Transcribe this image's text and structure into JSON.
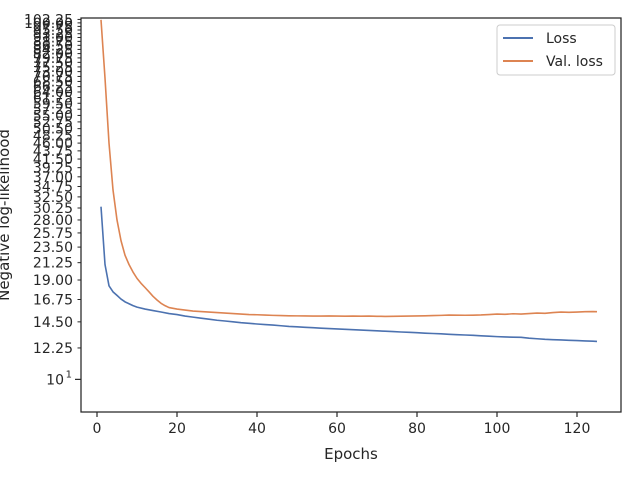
{
  "chart_data": {
    "type": "line",
    "xlabel": "Epochs",
    "ylabel": "Negative log-likelihood",
    "xlim": [
      -4,
      131
    ],
    "ylim": [
      8.1,
      103.2
    ],
    "yscale": "log",
    "x_ticks": [
      "0",
      "20",
      "40",
      "60",
      "80",
      "100",
      "120"
    ],
    "y_ticks": [
      "12.25",
      "14.50",
      "16.75",
      "19.00",
      "21.25",
      "23.50",
      "25.75",
      "28.00",
      "30.25",
      "32.50",
      "34.75",
      "37.00",
      "39.25",
      "41.50",
      "43.75",
      "46.00",
      "48.25",
      "50.50",
      "52.75",
      "55.00",
      "57.25",
      "59.50",
      "61.75",
      "64.00",
      "66.25",
      "68.50",
      "70.75",
      "73.00",
      "75.25",
      "77.50",
      "79.75",
      "82.00",
      "84.25",
      "86.50",
      "88.75",
      "91.00",
      "93.25",
      "95.50",
      "97.75",
      "100.00",
      "102.25"
    ],
    "y_major_tick": {
      "label_base": "10",
      "label_exp": "1",
      "value": 10
    },
    "legend": "top-right",
    "series": [
      {
        "name": "Loss",
        "color": "#4c72b0",
        "points": [
          [
            1,
            30.5
          ],
          [
            2,
            21.0
          ],
          [
            3,
            18.3
          ],
          [
            4,
            17.6
          ],
          [
            5,
            17.2
          ],
          [
            6,
            16.8
          ],
          [
            7,
            16.5
          ],
          [
            8,
            16.3
          ],
          [
            9,
            16.1
          ],
          [
            10,
            15.95
          ],
          [
            12,
            15.75
          ],
          [
            14,
            15.6
          ],
          [
            16,
            15.45
          ],
          [
            18,
            15.3
          ],
          [
            20,
            15.2
          ],
          [
            22,
            15.05
          ],
          [
            24,
            14.95
          ],
          [
            26,
            14.85
          ],
          [
            28,
            14.75
          ],
          [
            30,
            14.65
          ],
          [
            32,
            14.58
          ],
          [
            34,
            14.5
          ],
          [
            36,
            14.42
          ],
          [
            38,
            14.36
          ],
          [
            40,
            14.3
          ],
          [
            42,
            14.25
          ],
          [
            44,
            14.2
          ],
          [
            46,
            14.14
          ],
          [
            48,
            14.08
          ],
          [
            50,
            14.04
          ],
          [
            52,
            14.0
          ],
          [
            54,
            13.96
          ],
          [
            56,
            13.92
          ],
          [
            58,
            13.88
          ],
          [
            60,
            13.85
          ],
          [
            62,
            13.82
          ],
          [
            64,
            13.78
          ],
          [
            66,
            13.75
          ],
          [
            68,
            13.72
          ],
          [
            70,
            13.68
          ],
          [
            72,
            13.65
          ],
          [
            74,
            13.62
          ],
          [
            76,
            13.58
          ],
          [
            78,
            13.55
          ],
          [
            80,
            13.52
          ],
          [
            82,
            13.48
          ],
          [
            84,
            13.45
          ],
          [
            86,
            13.42
          ],
          [
            88,
            13.38
          ],
          [
            90,
            13.35
          ],
          [
            92,
            13.32
          ],
          [
            94,
            13.29
          ],
          [
            96,
            13.25
          ],
          [
            98,
            13.22
          ],
          [
            100,
            13.18
          ],
          [
            102,
            13.15
          ],
          [
            104,
            13.13
          ],
          [
            106,
            13.12
          ],
          [
            108,
            13.05
          ],
          [
            110,
            13.0
          ],
          [
            112,
            12.95
          ],
          [
            114,
            12.92
          ],
          [
            116,
            12.9
          ],
          [
            118,
            12.87
          ],
          [
            120,
            12.85
          ],
          [
            122,
            12.82
          ],
          [
            124,
            12.8
          ],
          [
            125,
            12.78
          ]
        ]
      },
      {
        "name": "Val. loss",
        "color": "#dd8452",
        "points": [
          [
            1,
            102.0
          ],
          [
            2,
            70.0
          ],
          [
            3,
            46.0
          ],
          [
            4,
            34.0
          ],
          [
            5,
            28.0
          ],
          [
            6,
            24.5
          ],
          [
            7,
            22.3
          ],
          [
            8,
            21.0
          ],
          [
            9,
            20.0
          ],
          [
            10,
            19.2
          ],
          [
            11,
            18.6
          ],
          [
            12,
            18.1
          ],
          [
            13,
            17.6
          ],
          [
            14,
            17.1
          ],
          [
            15,
            16.7
          ],
          [
            16,
            16.35
          ],
          [
            17,
            16.1
          ],
          [
            18,
            15.9
          ],
          [
            20,
            15.75
          ],
          [
            22,
            15.65
          ],
          [
            24,
            15.55
          ],
          [
            26,
            15.5
          ],
          [
            28,
            15.45
          ],
          [
            30,
            15.4
          ],
          [
            32,
            15.35
          ],
          [
            34,
            15.3
          ],
          [
            36,
            15.25
          ],
          [
            38,
            15.2
          ],
          [
            40,
            15.18
          ],
          [
            42,
            15.15
          ],
          [
            44,
            15.12
          ],
          [
            46,
            15.1
          ],
          [
            48,
            15.08
          ],
          [
            50,
            15.07
          ],
          [
            52,
            15.06
          ],
          [
            54,
            15.05
          ],
          [
            56,
            15.05
          ],
          [
            58,
            15.06
          ],
          [
            60,
            15.05
          ],
          [
            62,
            15.04
          ],
          [
            64,
            15.05
          ],
          [
            66,
            15.04
          ],
          [
            68,
            15.05
          ],
          [
            70,
            15.03
          ],
          [
            72,
            15.02
          ],
          [
            74,
            15.03
          ],
          [
            76,
            15.04
          ],
          [
            78,
            15.05
          ],
          [
            80,
            15.06
          ],
          [
            82,
            15.08
          ],
          [
            84,
            15.1
          ],
          [
            86,
            15.12
          ],
          [
            88,
            15.15
          ],
          [
            90,
            15.14
          ],
          [
            92,
            15.13
          ],
          [
            94,
            15.14
          ],
          [
            96,
            15.16
          ],
          [
            98,
            15.2
          ],
          [
            100,
            15.25
          ],
          [
            102,
            15.22
          ],
          [
            104,
            15.28
          ],
          [
            106,
            15.25
          ],
          [
            108,
            15.3
          ],
          [
            110,
            15.35
          ],
          [
            112,
            15.32
          ],
          [
            114,
            15.4
          ],
          [
            116,
            15.45
          ],
          [
            118,
            15.42
          ],
          [
            120,
            15.45
          ],
          [
            122,
            15.48
          ],
          [
            124,
            15.5
          ],
          [
            125,
            15.48
          ]
        ]
      }
    ]
  }
}
